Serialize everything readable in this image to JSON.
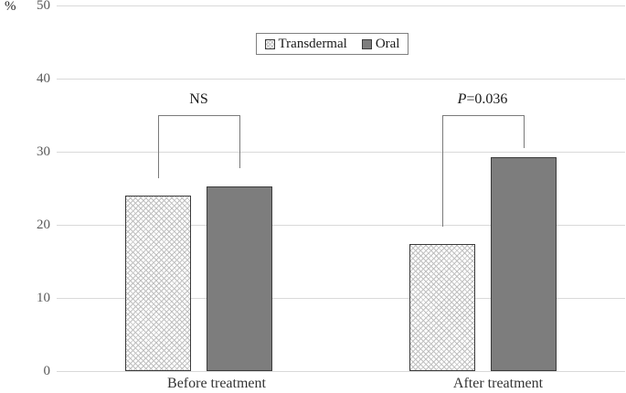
{
  "chart_data": {
    "type": "bar",
    "title": "",
    "xlabel": "",
    "ylabel": "%",
    "categories": [
      "Before treatment",
      "After treatment"
    ],
    "series": [
      {
        "name": "Transdermal",
        "fill": "hatched",
        "values": [
          24.0,
          17.4
        ]
      },
      {
        "name": "Oral",
        "fill": "solid",
        "values": [
          25.3,
          29.3
        ]
      }
    ],
    "ylim": [
      0,
      50
    ],
    "yticks": [
      0,
      10,
      20,
      30,
      40,
      50
    ],
    "grid": true,
    "legend_position": "top-center",
    "annotations": [
      {
        "category": "Before treatment",
        "prefix": "NS",
        "prefix_italic": false,
        "rest": ""
      },
      {
        "category": "After treatment",
        "prefix": "P",
        "prefix_italic": true,
        "rest": "=0.036"
      }
    ],
    "colors": {
      "oral_fill": "#7d7d7d",
      "bar_border": "#3b3b3b",
      "hatch": "#c0c0c0",
      "gridline": "#d9d9d9",
      "tick_text": "#595959",
      "label_text": "#333333",
      "annotation_text": "#1a1a1a",
      "legend_border": "#7f7f7f",
      "bracket": "#7a7a7a"
    }
  }
}
